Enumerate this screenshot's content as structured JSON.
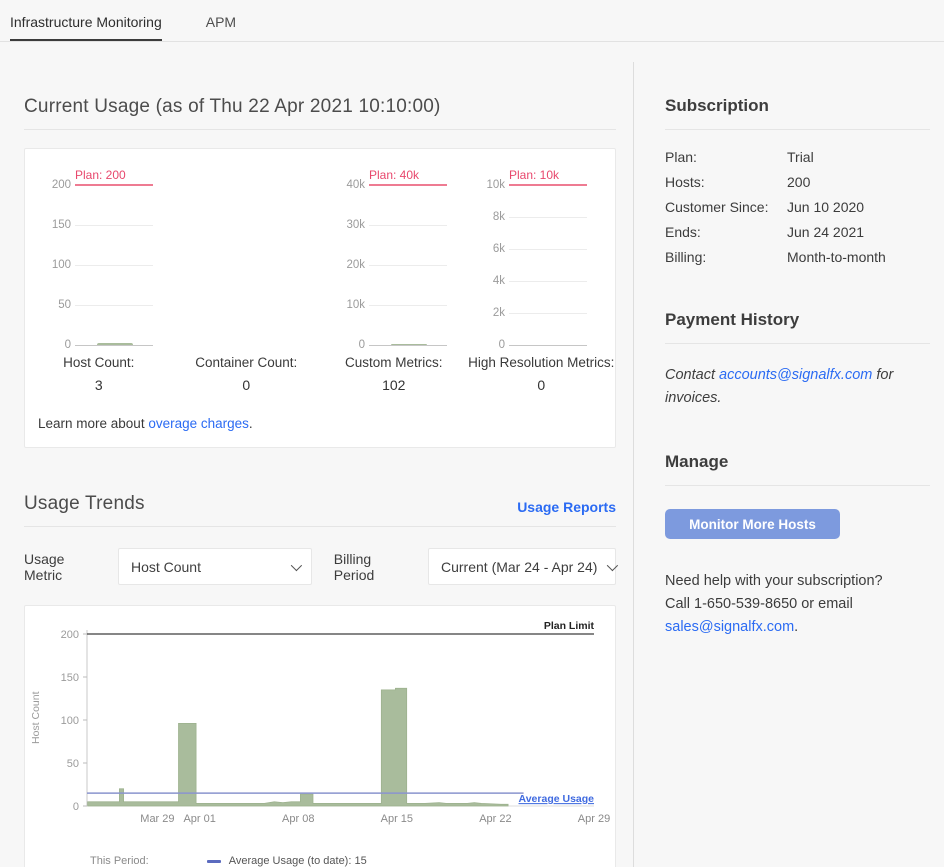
{
  "tabs": {
    "infrastructure": "Infrastructure Monitoring",
    "apm": "APM"
  },
  "current_usage": {
    "title": "Current Usage (as of Thu 22 Apr 2021 10:10:00)",
    "learn_more_prefix": "Learn more about ",
    "learn_more_link": "overage charges",
    "learn_more_suffix": ".",
    "stats": [
      {
        "label": "Host Count:",
        "value": "3"
      },
      {
        "label": "Container Count:",
        "value": "0"
      },
      {
        "label": "Custom Metrics:",
        "value": "102"
      },
      {
        "label": "High Resolution Metrics:",
        "value": "0"
      }
    ]
  },
  "usage_trends": {
    "title": "Usage Trends",
    "reports_link": "Usage Reports",
    "usage_metric_label": "Usage Metric",
    "usage_metric_value": "Host Count",
    "billing_period_label": "Billing Period",
    "billing_period_value": "Current (Mar 24 - Apr 24)",
    "legend_this_period": "This Period:",
    "legend_average": "Average Usage (to date): 15"
  },
  "sidebar": {
    "subscription": {
      "title": "Subscription",
      "rows": [
        {
          "label": "Plan:",
          "value": "Trial"
        },
        {
          "label": "Hosts:",
          "value": "200"
        },
        {
          "label": "Customer Since:",
          "value": "Jun 10 2020"
        },
        {
          "label": "Ends:",
          "value": "Jun 24 2021"
        },
        {
          "label": "Billing:",
          "value": "Month-to-month"
        }
      ]
    },
    "payment_history": {
      "title": "Payment History",
      "text_prefix": "Contact ",
      "email_link": "accounts@signalfx.com",
      "text_suffix": " for invoices."
    },
    "manage": {
      "title": "Manage",
      "button_label": "Monitor More Hosts",
      "help_line1": "Need help with your subscription?",
      "help_line2": "Call 1-650-539-8650 or email",
      "help_link": "sales@signalfx.com",
      "help_suffix": "."
    }
  },
  "colors": {
    "plan_red_text": "#e8486d",
    "plan_red_line": "#ee7b92",
    "usage_green": "#a9bc9c",
    "average_blue_line": "#8a94ce",
    "average_blue_label": "#3f6ae0",
    "plan_limit_dark": "#3f3f3f",
    "link_blue": "#2b6bf3",
    "button_blue": "#7d9ade"
  },
  "chart_data": [
    {
      "type": "area",
      "name": "host-count-mini",
      "title": "Host Count",
      "plan_label": "Plan: 200",
      "plan_value": 200,
      "ylim": [
        0,
        200
      ],
      "yticks": [
        "200",
        "150",
        "100",
        "50",
        "0"
      ],
      "current_value": 3
    },
    {
      "type": "area",
      "name": "custom-metrics-mini",
      "title": "Custom Metrics",
      "plan_label": "Plan: 40k",
      "plan_value": 40000,
      "ylim": [
        0,
        40000
      ],
      "yticks": [
        "40k",
        "30k",
        "20k",
        "10k",
        "0"
      ],
      "current_value": 102
    },
    {
      "type": "area",
      "name": "high-resolution-metrics-mini",
      "title": "High Resolution Metrics",
      "plan_label": "Plan: 10k",
      "plan_value": 10000,
      "ylim": [
        0,
        10000
      ],
      "yticks": [
        "10k",
        "8k",
        "6k",
        "4k",
        "2k",
        "0"
      ],
      "current_value": 0
    },
    {
      "type": "area",
      "name": "usage-trend",
      "ylabel": "Host Count",
      "ylim": [
        0,
        200
      ],
      "yticks": [
        0,
        50,
        100,
        150,
        200
      ],
      "x_start_label": "Mar 24",
      "x_total_days": 36,
      "xticks": [
        {
          "label": "Mar 29",
          "day": 5
        },
        {
          "label": "Apr 01",
          "day": 8
        },
        {
          "label": "Apr 08",
          "day": 15
        },
        {
          "label": "Apr 15",
          "day": 22
        },
        {
          "label": "Apr 22",
          "day": 29
        },
        {
          "label": "Apr 29",
          "day": 36
        }
      ],
      "plan_limit": {
        "label": "Plan Limit",
        "value": 200
      },
      "average": {
        "label": "Average Usage",
        "value": 15,
        "end_day": 31
      },
      "series": [
        {
          "name": "Host Count (this period)",
          "step_points": [
            [
              0.05,
              5
            ],
            [
              2.3,
              5
            ],
            [
              2.3,
              20
            ],
            [
              2.6,
              20
            ],
            [
              2.6,
              5
            ],
            [
              6.5,
              5
            ],
            [
              6.5,
              96
            ],
            [
              7.75,
              96
            ],
            [
              7.75,
              3
            ],
            [
              12.6,
              3
            ],
            [
              13.3,
              5
            ],
            [
              13.9,
              4
            ],
            [
              14.5,
              5
            ],
            [
              15.15,
              5
            ],
            [
              15.15,
              14
            ],
            [
              16.05,
              14
            ],
            [
              16.05,
              3
            ],
            [
              20.9,
              3
            ],
            [
              20.9,
              135
            ],
            [
              21.9,
              135
            ],
            [
              21.9,
              137
            ],
            [
              22.7,
              137
            ],
            [
              22.7,
              3
            ],
            [
              24.0,
              3
            ],
            [
              25.0,
              4
            ],
            [
              25.5,
              3
            ],
            [
              27.0,
              3
            ],
            [
              27.5,
              4
            ],
            [
              28.0,
              3
            ],
            [
              29.4,
              2
            ],
            [
              29.9,
              2
            ]
          ]
        }
      ],
      "legend": [
        "Average Usage (to date): 15"
      ]
    }
  ]
}
